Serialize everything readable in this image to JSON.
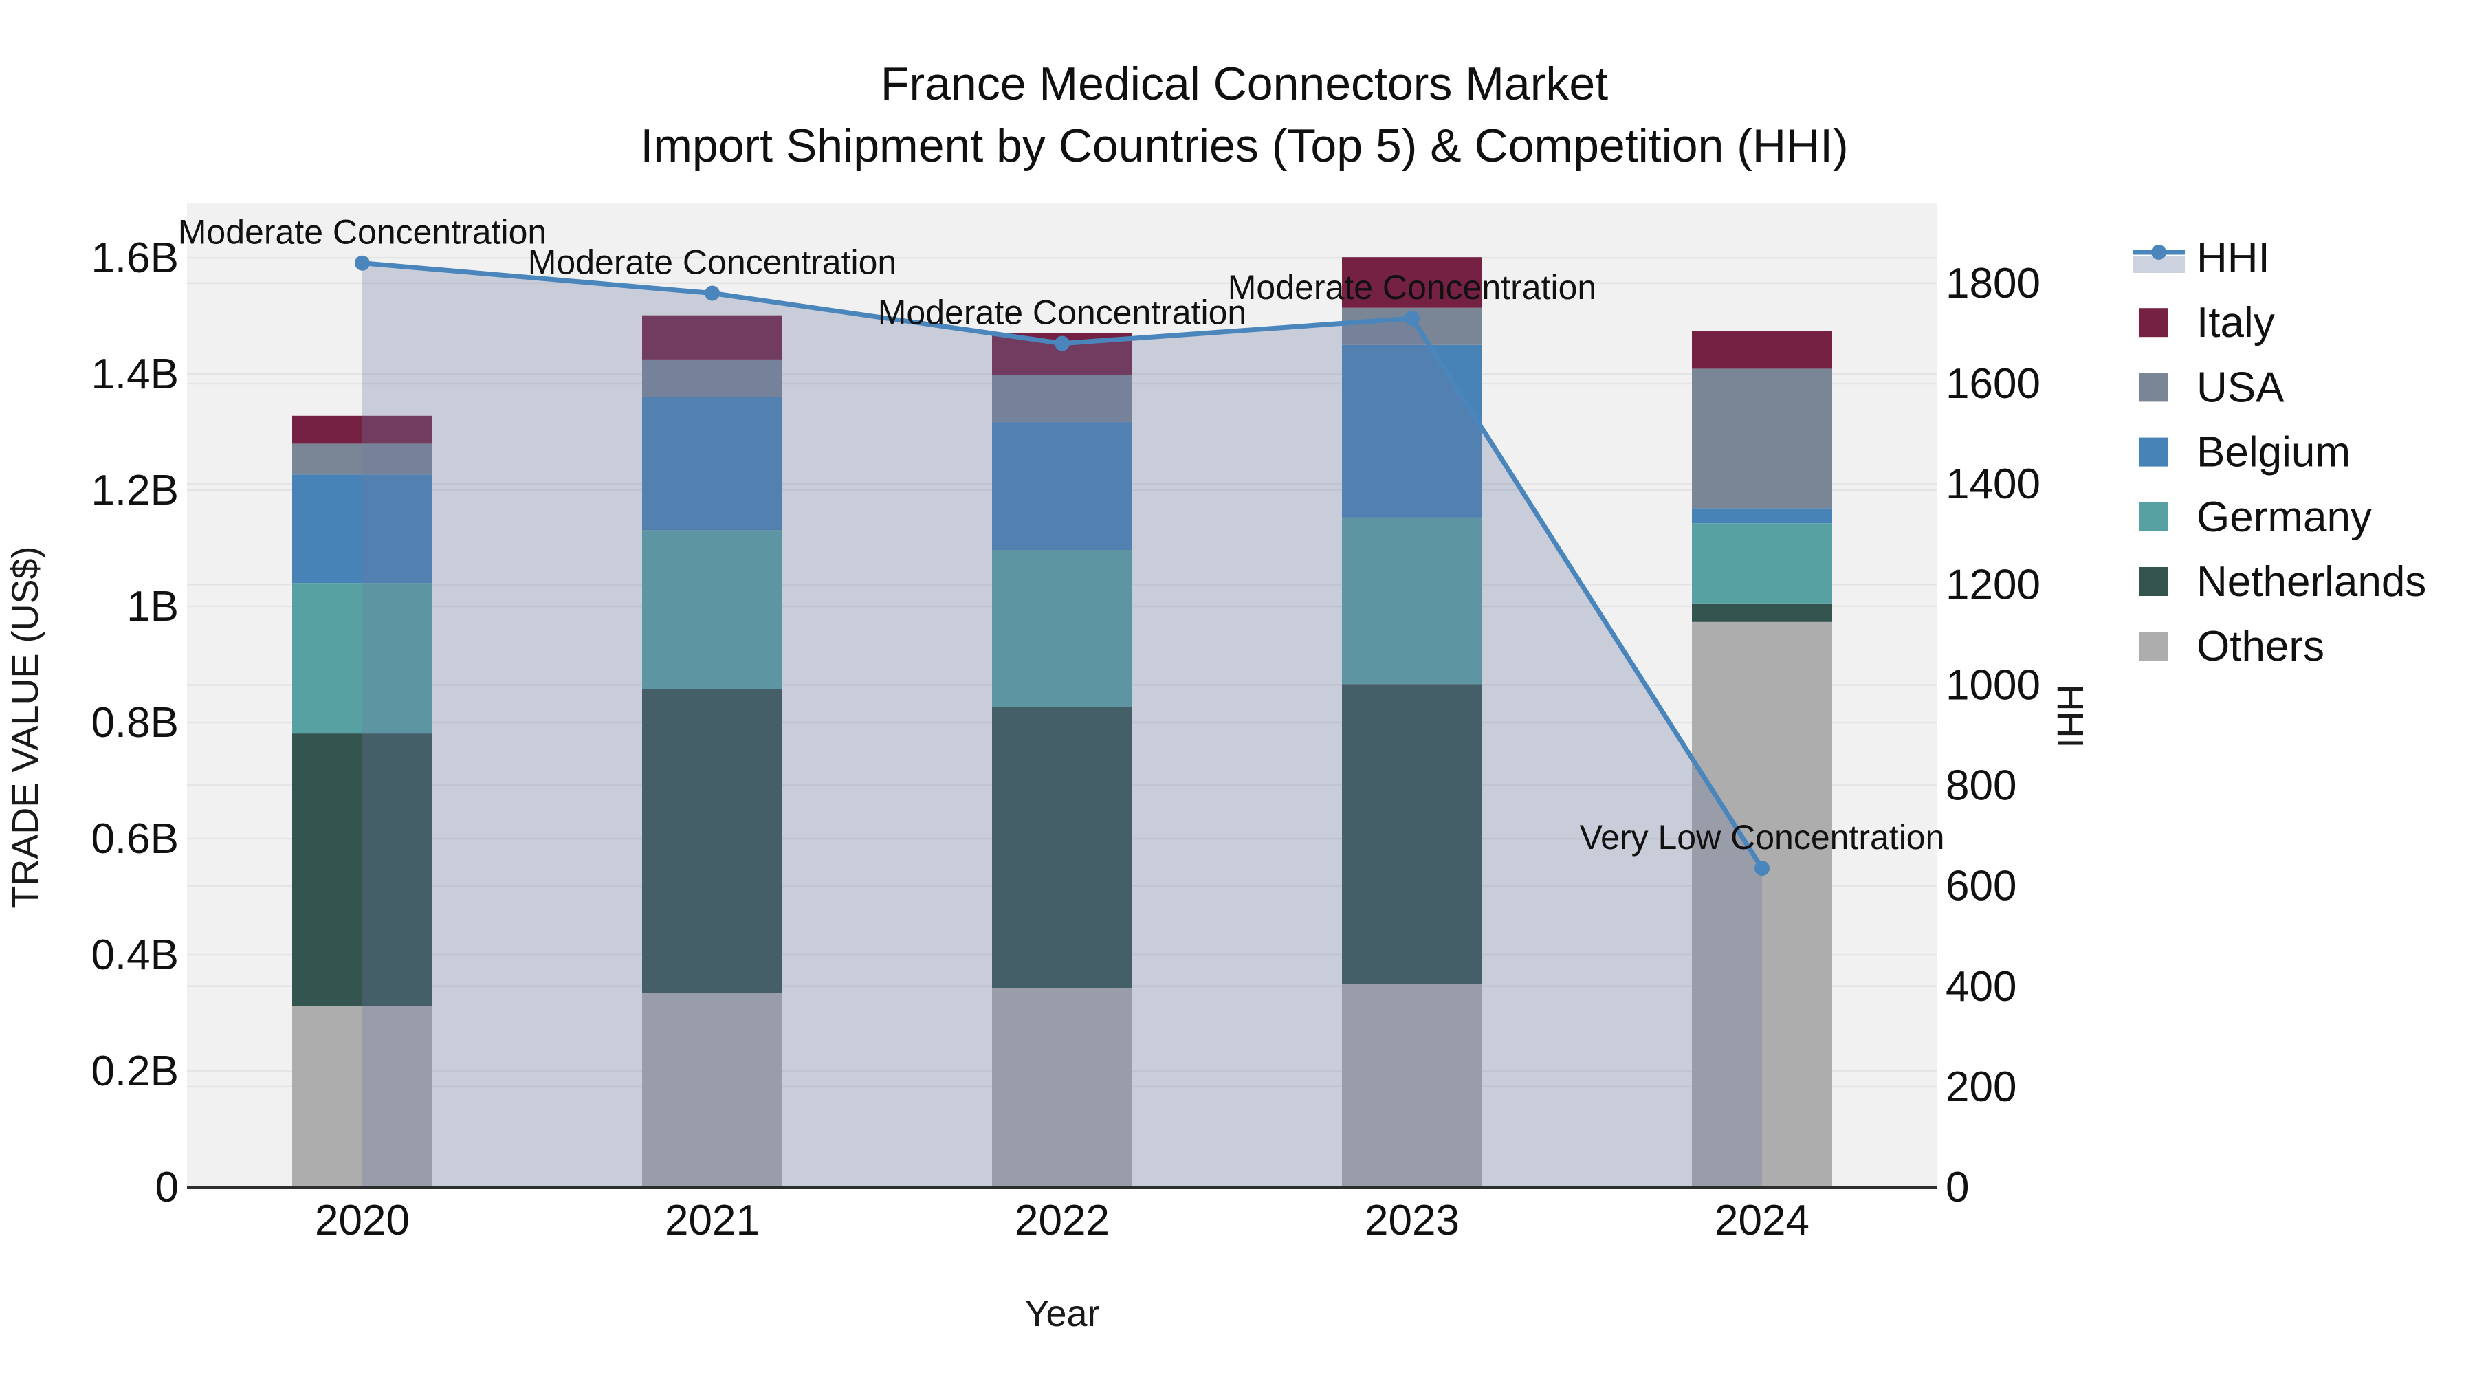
{
  "title": {
    "line1": "France Medical Connectors Market",
    "line2": "Import Shipment by Countries (Top 5) & Competition (HHI)"
  },
  "axes": {
    "y_left_title": "TRADE VALUE (US$)",
    "y_right_title": "HHI",
    "x_title": "Year",
    "y_left_ticks": [
      {
        "label": "0",
        "value": 0
      },
      {
        "label": "0.2B",
        "value": 0.2
      },
      {
        "label": "0.4B",
        "value": 0.4
      },
      {
        "label": "0.6B",
        "value": 0.6
      },
      {
        "label": "0.8B",
        "value": 0.8
      },
      {
        "label": "1B",
        "value": 1.0
      },
      {
        "label": "1.2B",
        "value": 1.2
      },
      {
        "label": "1.4B",
        "value": 1.4
      },
      {
        "label": "1.6B",
        "value": 1.6
      }
    ],
    "y_right_ticks": [
      {
        "label": "0",
        "value": 0
      },
      {
        "label": "200",
        "value": 200
      },
      {
        "label": "400",
        "value": 400
      },
      {
        "label": "600",
        "value": 600
      },
      {
        "label": "800",
        "value": 800
      },
      {
        "label": "1000",
        "value": 1000
      },
      {
        "label": "1200",
        "value": 1200
      },
      {
        "label": "1400",
        "value": 1400
      },
      {
        "label": "1600",
        "value": 1600
      },
      {
        "label": "1800",
        "value": 1800
      }
    ],
    "y_left_range_billions": [
      0,
      1.69
    ],
    "y_right_range": [
      0,
      1960
    ],
    "grid": true
  },
  "colors": {
    "plot_bg": "#F1F1F1",
    "grid": "#E4E4E4",
    "axis_line": "#2E2E2E",
    "text": "#111111",
    "hhi_line": "#4A86BB",
    "hhi_fill": "rgba(108,121,161,0.30)",
    "legend_hhi_fill_swatch": "#CCD3DE"
  },
  "chart_data": {
    "type": "bar",
    "stacked": true,
    "categories": [
      "2020",
      "2021",
      "2022",
      "2023",
      "2024"
    ],
    "value_unit": "USD billions",
    "series": [
      {
        "name": "Others",
        "color": "#ADADAD",
        "values": [
          0.312,
          0.334,
          0.342,
          0.35,
          0.973
        ]
      },
      {
        "name": "Netherlands",
        "color": "#33544F",
        "values": [
          0.469,
          0.523,
          0.484,
          0.516,
          0.032
        ]
      },
      {
        "name": "Germany",
        "color": "#57A1A3",
        "values": [
          0.259,
          0.274,
          0.271,
          0.287,
          0.138
        ]
      },
      {
        "name": "Belgium",
        "color": "#4783B7",
        "values": [
          0.187,
          0.23,
          0.22,
          0.297,
          0.026
        ]
      },
      {
        "name": "USA",
        "color": "#7A8695",
        "values": [
          0.053,
          0.064,
          0.081,
          0.064,
          0.24
        ]
      },
      {
        "name": "Italy",
        "color": "#742144",
        "values": [
          0.048,
          0.076,
          0.072,
          0.087,
          0.065
        ]
      }
    ],
    "bar_totals_billions": [
      1.328,
      1.501,
      1.47,
      1.601,
      1.474
    ],
    "line_series": {
      "name": "HHI",
      "axis": "right",
      "color": "#4A86BB",
      "fill": "tozeroy",
      "fill_color": "rgba(108,121,161,0.30)",
      "values": [
        1840,
        1780,
        1680,
        1730,
        635
      ]
    },
    "annotations": [
      {
        "category": "2020",
        "text": "Moderate Concentration"
      },
      {
        "category": "2021",
        "text": "Moderate Concentration"
      },
      {
        "category": "2022",
        "text": "Moderate Concentration"
      },
      {
        "category": "2023",
        "text": "Moderate Concentration"
      },
      {
        "category": "2024",
        "text": "Very Low Concentration"
      }
    ],
    "legend": {
      "position": "right",
      "items": [
        {
          "label": "HHI",
          "type": "line"
        },
        {
          "label": "Italy",
          "type": "swatch",
          "color": "#742144"
        },
        {
          "label": "USA",
          "type": "swatch",
          "color": "#7A8695"
        },
        {
          "label": "Belgium",
          "type": "swatch",
          "color": "#4783B7"
        },
        {
          "label": "Germany",
          "type": "swatch",
          "color": "#57A1A3"
        },
        {
          "label": "Netherlands",
          "type": "swatch",
          "color": "#33544F"
        },
        {
          "label": "Others",
          "type": "swatch",
          "color": "#ADADAD"
        }
      ]
    }
  }
}
